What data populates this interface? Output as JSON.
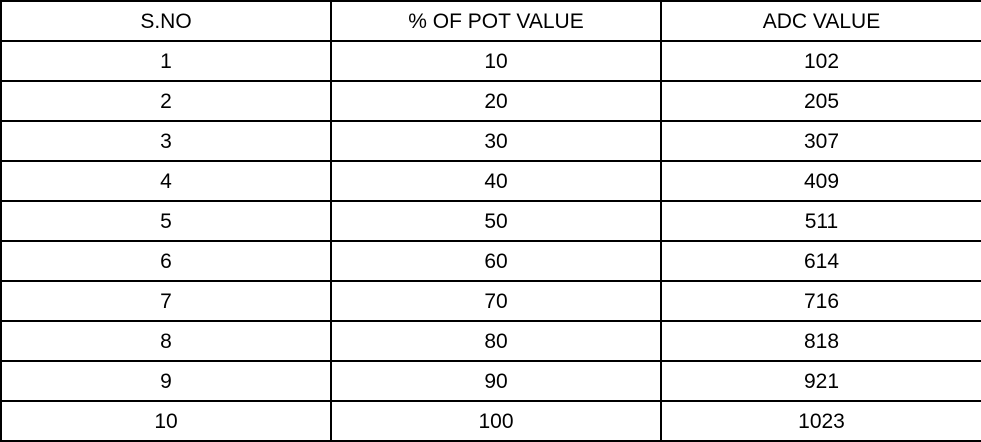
{
  "table": {
    "headers": [
      "S.NO",
      "% OF POT VALUE",
      "ADC VALUE"
    ],
    "rows": [
      [
        "1",
        "10",
        "102"
      ],
      [
        "2",
        "20",
        "205"
      ],
      [
        "3",
        "30",
        "307"
      ],
      [
        "4",
        "40",
        "409"
      ],
      [
        "5",
        "50",
        "511"
      ],
      [
        "6",
        "60",
        "614"
      ],
      [
        "7",
        "70",
        "716"
      ],
      [
        "8",
        "80",
        "818"
      ],
      [
        "9",
        "90",
        "921"
      ],
      [
        "10",
        "100",
        "1023"
      ]
    ]
  }
}
